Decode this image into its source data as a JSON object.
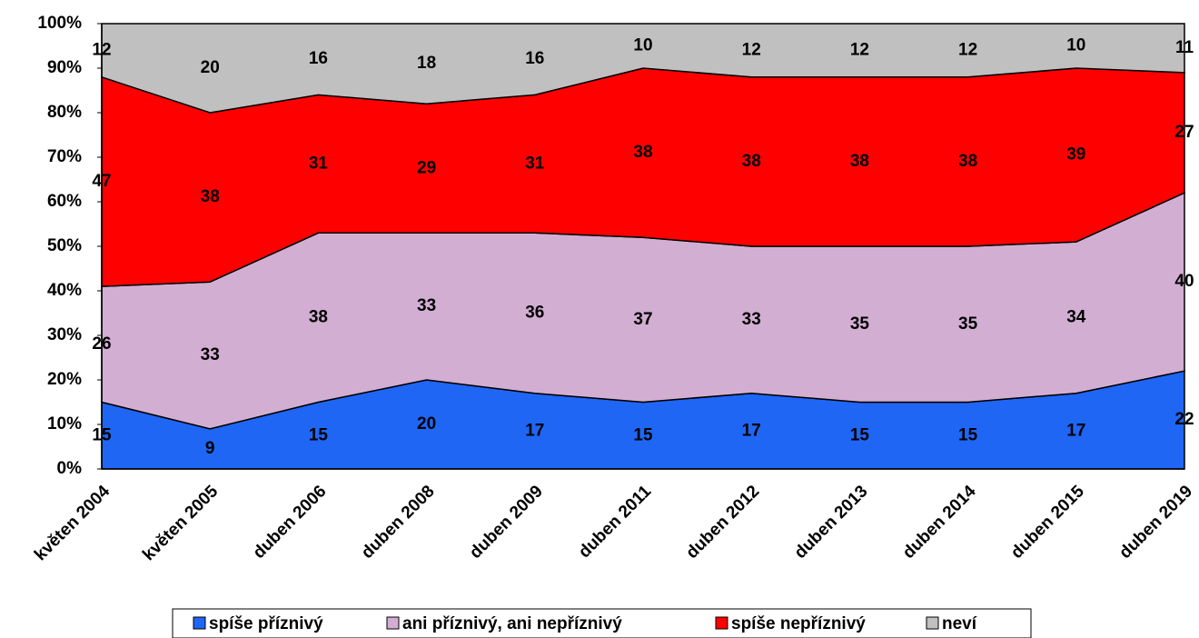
{
  "chart_data": {
    "type": "stacked-area",
    "categories": [
      "květen 2004",
      "květen 2005",
      "duben 2006",
      "duben 2008",
      "duben 2009",
      "duben 2011",
      "duben 2012",
      "duben 2013",
      "duben 2014",
      "duben 2015",
      "duben 2019"
    ],
    "series": [
      {
        "name": "spíše příznivý",
        "color": "#1f66f5",
        "values": [
          15,
          9,
          15,
          20,
          17,
          15,
          17,
          15,
          15,
          17,
          22
        ]
      },
      {
        "name": "ani příznivý, ani nepříznivý",
        "color": "#d3aed3",
        "values": [
          26,
          33,
          38,
          33,
          36,
          37,
          33,
          35,
          35,
          34,
          40
        ]
      },
      {
        "name": "spíše nepříznivý",
        "color": "#ff0000",
        "values": [
          47,
          38,
          31,
          29,
          31,
          38,
          38,
          38,
          38,
          39,
          27
        ]
      },
      {
        "name": "neví",
        "color": "#c0c0c0",
        "values": [
          12,
          20,
          16,
          18,
          16,
          10,
          12,
          12,
          12,
          10,
          11
        ]
      }
    ],
    "ylim": [
      0,
      100
    ],
    "yticks": [
      {
        "value": 0,
        "label": "0%"
      },
      {
        "value": 10,
        "label": "10%"
      },
      {
        "value": 20,
        "label": "20%"
      },
      {
        "value": 30,
        "label": "30%"
      },
      {
        "value": 40,
        "label": "40%"
      },
      {
        "value": 50,
        "label": "50%"
      },
      {
        "value": 60,
        "label": "60%"
      },
      {
        "value": 70,
        "label": "70%"
      },
      {
        "value": 80,
        "label": "80%"
      },
      {
        "value": 90,
        "label": "90%"
      },
      {
        "value": 100,
        "label": "100%"
      }
    ]
  }
}
